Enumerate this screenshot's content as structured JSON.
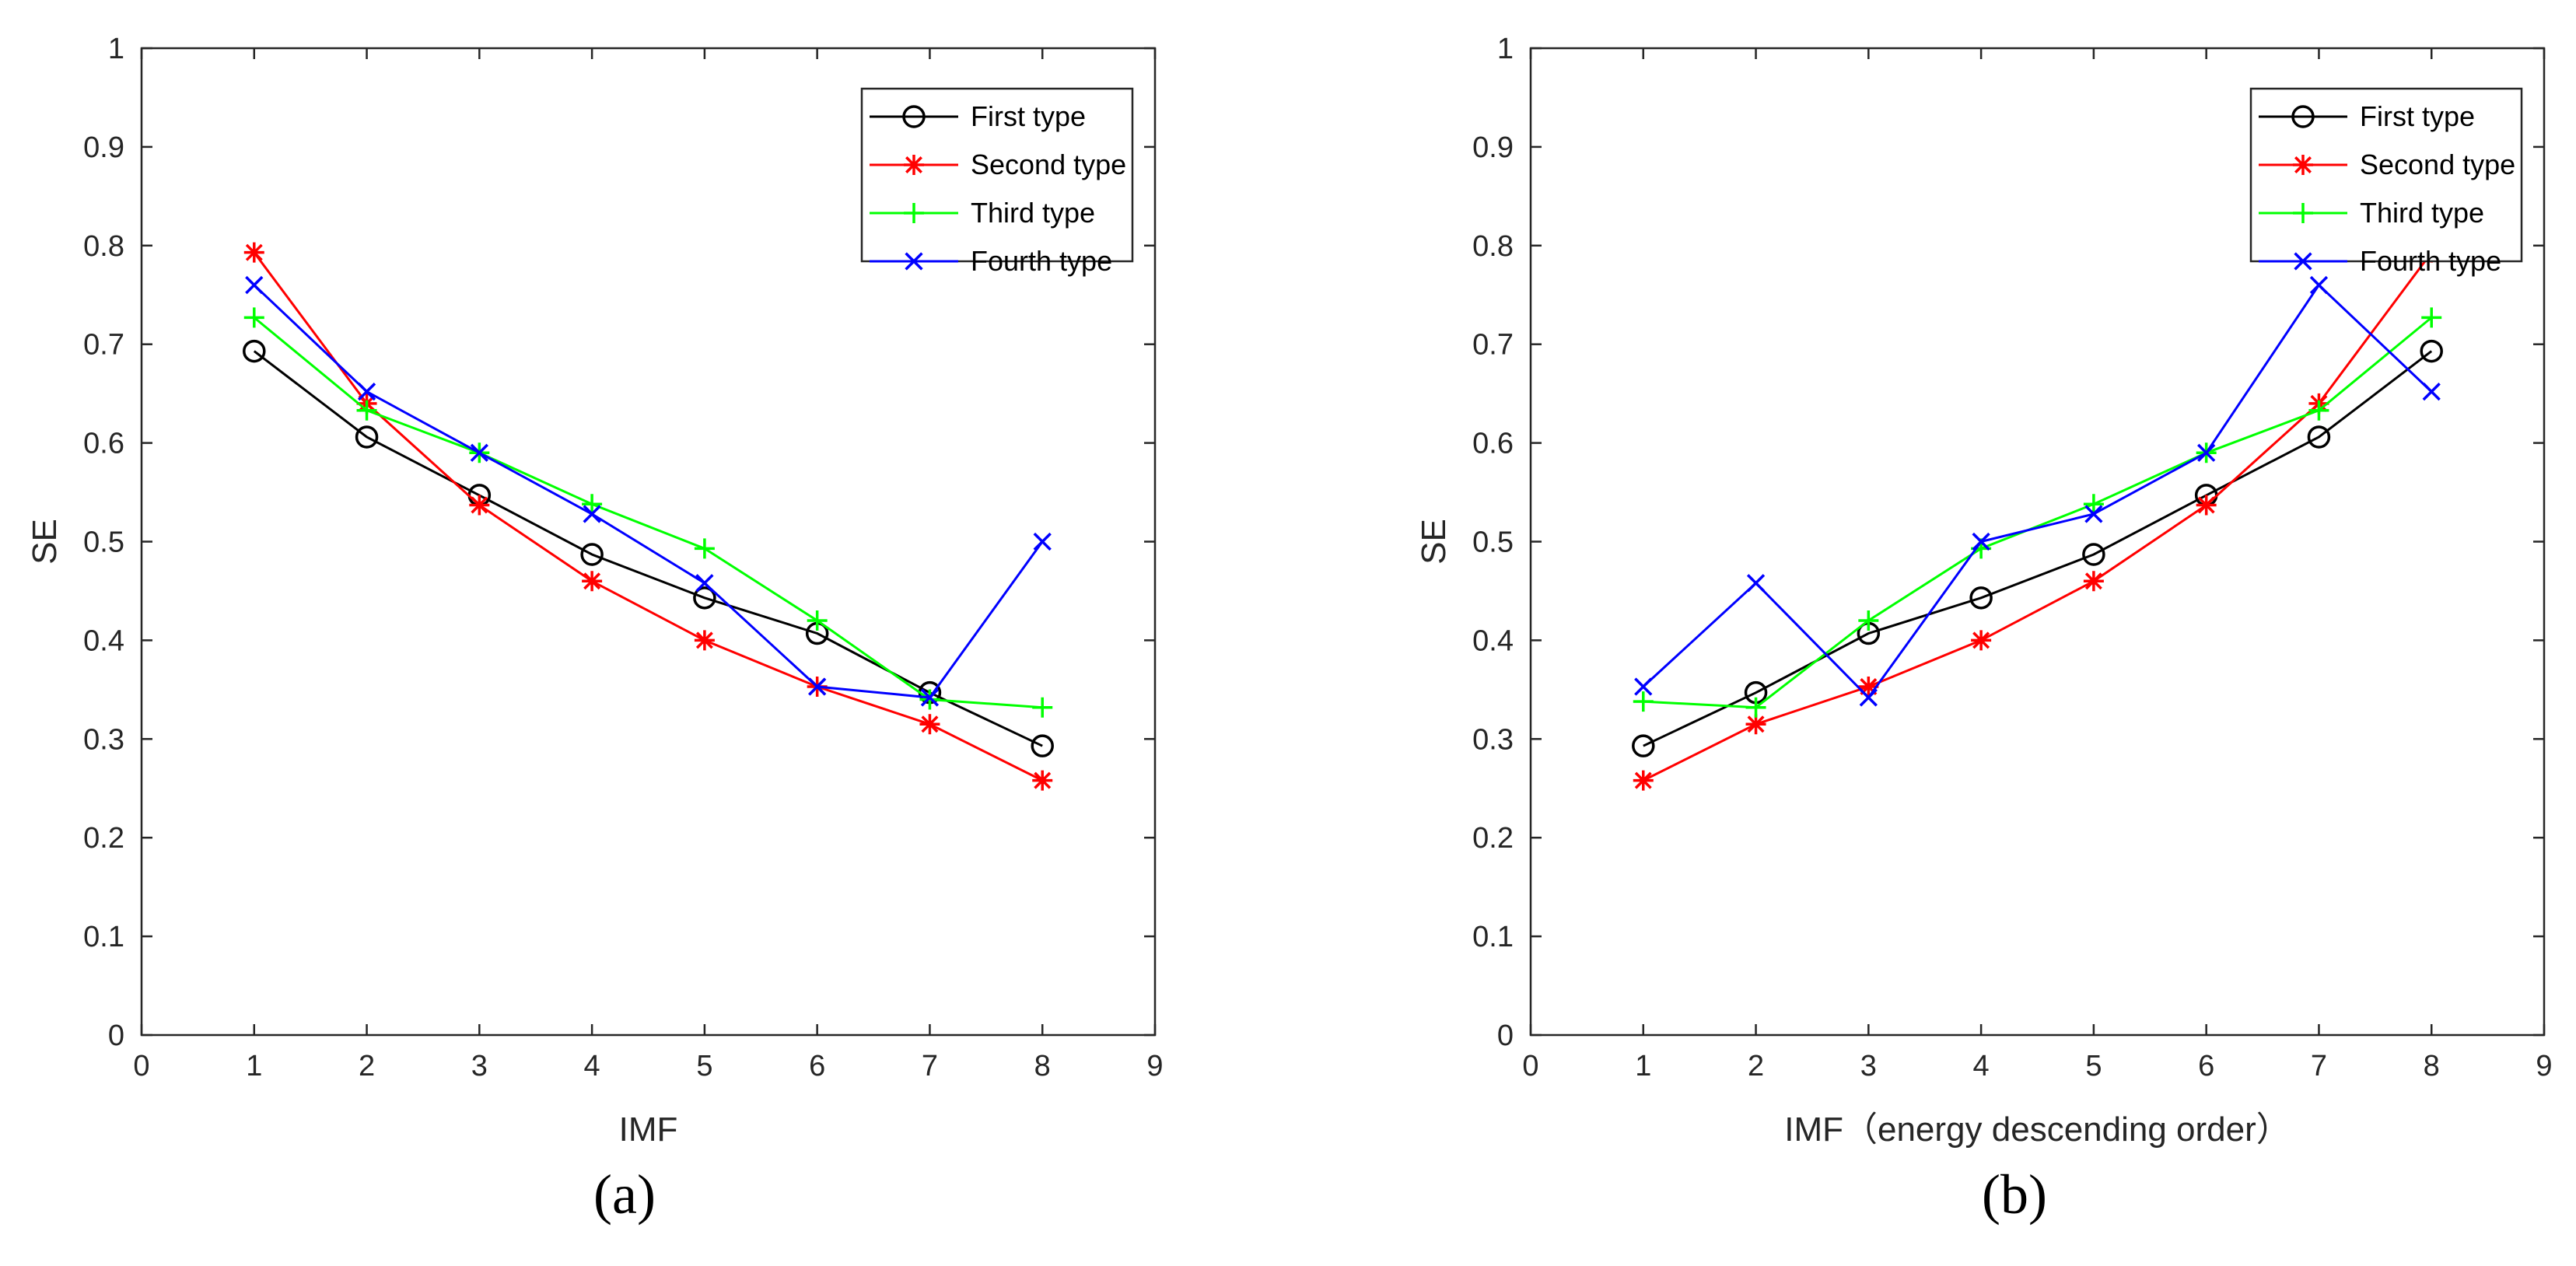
{
  "chart_data": [
    {
      "type": "line",
      "caption": "(a)",
      "xlabel": "IMF",
      "ylabel": "SE",
      "xlim": [
        0,
        9
      ],
      "ylim": [
        0,
        1
      ],
      "xticks": [
        "0",
        "1",
        "2",
        "3",
        "4",
        "5",
        "6",
        "7",
        "8",
        "9"
      ],
      "yticks": [
        "0",
        "0.1",
        "0.2",
        "0.3",
        "0.4",
        "0.5",
        "0.6",
        "0.7",
        "0.8",
        "0.9",
        "1"
      ],
      "legend_position": "top-right",
      "x": [
        1,
        2,
        3,
        4,
        5,
        6,
        7,
        8
      ],
      "series": [
        {
          "name": "First type",
          "color": "#000000",
          "marker": "circle",
          "values": [
            0.693,
            0.606,
            0.547,
            0.487,
            0.443,
            0.407,
            0.347,
            0.293
          ]
        },
        {
          "name": "Second type",
          "color": "#ff0000",
          "marker": "asterisk",
          "values": [
            0.793,
            0.64,
            0.537,
            0.46,
            0.4,
            0.353,
            0.315,
            0.258
          ]
        },
        {
          "name": "Third type",
          "color": "#00ff00",
          "marker": "plus",
          "values": [
            0.727,
            0.633,
            0.59,
            0.538,
            0.493,
            0.42,
            0.34,
            0.332
          ]
        },
        {
          "name": "Fourth type",
          "color": "#0000ff",
          "marker": "x",
          "values": [
            0.76,
            0.652,
            0.59,
            0.528,
            0.458,
            0.353,
            0.342,
            0.5
          ]
        }
      ]
    },
    {
      "type": "line",
      "caption": "(b)",
      "xlabel": "IMF（energy descending order）",
      "ylabel": "SE",
      "xlim": [
        0,
        9
      ],
      "ylim": [
        0,
        1
      ],
      "xticks": [
        "0",
        "1",
        "2",
        "3",
        "4",
        "5",
        "6",
        "7",
        "8",
        "9"
      ],
      "yticks": [
        "0",
        "0.1",
        "0.2",
        "0.3",
        "0.4",
        "0.5",
        "0.6",
        "0.7",
        "0.8",
        "0.9",
        "1"
      ],
      "legend_position": "top-right",
      "x": [
        1,
        2,
        3,
        4,
        5,
        6,
        7,
        8
      ],
      "series": [
        {
          "name": "First type",
          "color": "#000000",
          "marker": "circle",
          "values": [
            0.293,
            0.347,
            0.407,
            0.443,
            0.487,
            0.547,
            0.606,
            0.693
          ]
        },
        {
          "name": "Second type",
          "color": "#ff0000",
          "marker": "asterisk",
          "values": [
            0.258,
            0.315,
            0.353,
            0.4,
            0.46,
            0.537,
            0.64,
            0.793
          ]
        },
        {
          "name": "Third type",
          "color": "#00ff00",
          "marker": "plus",
          "values": [
            0.338,
            0.332,
            0.42,
            0.493,
            0.538,
            0.59,
            0.633,
            0.727
          ]
        },
        {
          "name": "Fourth type",
          "color": "#0000ff",
          "marker": "x",
          "values": [
            0.353,
            0.458,
            0.342,
            0.5,
            0.528,
            0.59,
            0.76,
            0.652
          ]
        }
      ]
    }
  ]
}
